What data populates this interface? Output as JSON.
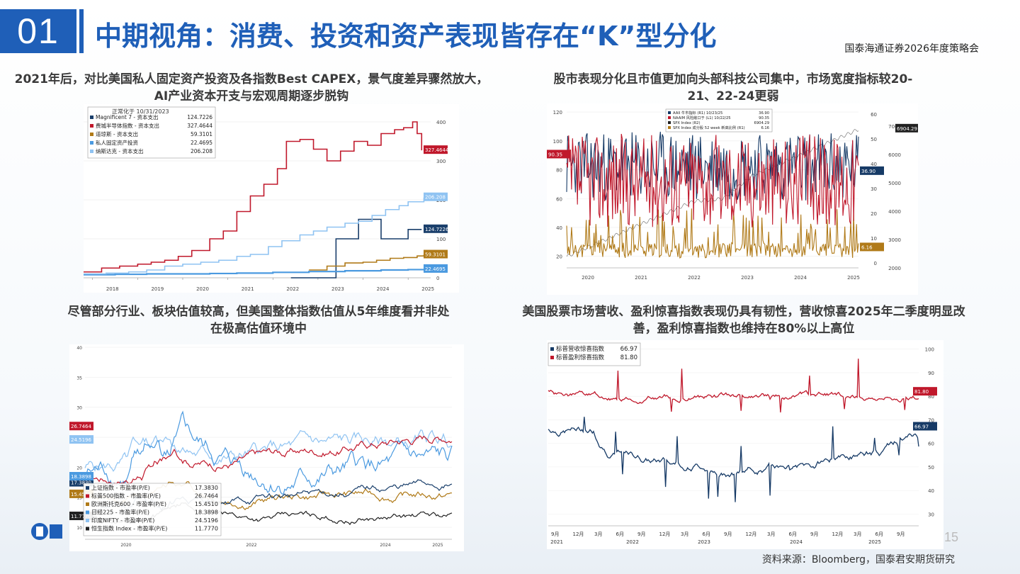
{
  "header": {
    "number": "01",
    "title": "中期视角：消费、投资和资产表现皆存在“K”型分化",
    "org": "国泰海通证券2026年度策略会"
  },
  "subtitles": {
    "tl": "2021年后，对比美国私人固定资产投资及各指数Best CAPEX，景气度差异骤然放大，AI产业资本开支与宏观周期逐步脱钩",
    "tr": "股市表现分化且市值更加向头部科技公司集中，市场宽度指标较20-21、22-24更弱",
    "bl": "尽管部分行业、板块估值较高，但美国整体指数估值从5年维度看并非处在极高估值环境中",
    "br": "美国股票市场营收、盈利惊喜指数表现仍具有韧性，营收惊喜2025年二季度明显改善，盈利惊喜指数也维持在80%以上高位"
  },
  "footer": {
    "source": "资料来源：Bloomberg，国泰君安期货研究",
    "page": "15"
  },
  "colors": {
    "brand": "#1f5fb8"
  },
  "chart_data": [
    {
      "id": "tl",
      "type": "line",
      "legend_title": "正常化于 10/31/2023",
      "x_ticks": [
        "2018",
        "2019",
        "2020",
        "2021",
        "2022",
        "2023",
        "2024",
        "2025"
      ],
      "y_ticks": [
        0,
        100,
        200,
        300,
        400
      ],
      "ylim": [
        0,
        420
      ],
      "series": [
        {
          "name": "Magnificent 7 - 资本支出",
          "last": "124.7226",
          "color": "#1a3f6b",
          "x": [
            2022.4,
            2022.9,
            2023.0,
            2023.3,
            2023.4,
            2023.8,
            2023.9,
            2024.2,
            2024.4,
            2024.9,
            2025.0,
            2025.3
          ],
          "y": [
            0,
            0,
            0,
            0,
            100,
            100,
            150,
            150,
            100,
            100,
            124,
            124
          ]
        },
        {
          "name": "费城半导体指数 - 资本支出",
          "last": "327.4644",
          "color": "#c0182b",
          "x": [
            2017.8,
            2018.2,
            2018.6,
            2019.0,
            2019.3,
            2019.6,
            2019.9,
            2020.2,
            2020.6,
            2020.9,
            2021.2,
            2021.5,
            2021.8,
            2022.1,
            2022.3,
            2022.6,
            2022.9,
            2023.2,
            2023.5,
            2023.8,
            2024.1,
            2024.4,
            2024.7,
            2024.9,
            2025.1,
            2025.2,
            2025.3
          ],
          "y": [
            15,
            25,
            30,
            35,
            40,
            45,
            55,
            70,
            100,
            120,
            170,
            210,
            240,
            280,
            350,
            355,
            330,
            300,
            325,
            350,
            340,
            370,
            380,
            385,
            400,
            370,
            327
          ]
        },
        {
          "name": "道琼斯 - 资本支出",
          "last": "59.3101",
          "color": "#b07a18",
          "x": [
            2022.8,
            2023.2,
            2023.6,
            2024.0,
            2024.3,
            2024.6,
            2024.9,
            2025.2,
            2025.35
          ],
          "y": [
            20,
            30,
            38,
            40,
            45,
            50,
            52,
            56,
            59
          ]
        },
        {
          "name": "私人固定资产投资",
          "last": "22.4695",
          "color": "#4b9ae0",
          "x": [
            2017.8,
            2018.5,
            2019.2,
            2020.0,
            2020.6,
            2021.2,
            2022.0,
            2022.8,
            2023.6,
            2024.4,
            2025.0,
            2025.35
          ],
          "y": [
            8,
            9,
            10,
            10,
            11,
            12,
            14,
            16,
            18,
            20,
            21,
            22
          ]
        },
        {
          "name": "纳斯达克 - 资本支出",
          "last": "206.208",
          "color": "#8fc3f2",
          "x": [
            2017.8,
            2018.3,
            2018.8,
            2019.2,
            2019.6,
            2020.0,
            2020.4,
            2020.8,
            2021.2,
            2021.5,
            2021.9,
            2022.2,
            2022.6,
            2022.9,
            2023.2,
            2023.6,
            2023.9,
            2024.2,
            2024.5,
            2024.8,
            2025.0,
            2025.35
          ],
          "y": [
            10,
            12,
            15,
            20,
            30,
            35,
            40,
            45,
            55,
            60,
            80,
            95,
            110,
            120,
            130,
            140,
            145,
            160,
            175,
            185,
            195,
            206
          ]
        }
      ]
    },
    {
      "id": "tr",
      "type": "line",
      "x_ticks": [
        "2020",
        "2021",
        "2022",
        "2023",
        "2024",
        "2025"
      ],
      "y_left": [
        20,
        40,
        60,
        80,
        100,
        120
      ],
      "y_right_a": [
        0,
        10,
        20,
        30,
        40,
        50,
        60
      ],
      "y_right_b": [
        2000,
        3000,
        4000,
        5000,
        6000,
        7000
      ],
      "series": [
        {
          "name": "AAII 牛市指标 (R1)",
          "date": "10/23/25",
          "last": "36.90",
          "color": "#163a66"
        },
        {
          "name": "NAAIM 风险敞口于 (L1)",
          "date": "10/22/25",
          "last": "90.35",
          "color": "#c0182b"
        },
        {
          "name": "SPX Index (R2)",
          "last": "6904.29",
          "color": "#222222"
        },
        {
          "name": "SPX Index 成分股 52 week 新高比例 (R1)",
          "last": "6.16",
          "color": "#b07a18"
        }
      ]
    },
    {
      "id": "bl",
      "type": "line",
      "x_ticks": [
        "2020",
        "2022",
        "2024",
        "2025"
      ],
      "y_ticks": [
        40,
        35,
        30,
        25,
        20,
        15,
        10
      ],
      "series": [
        {
          "name": "上证指数 - 市盈率(P/E)",
          "last": "17.3830",
          "color": "#1a3f6b"
        },
        {
          "name": "标普500指数 - 市盈率(P/E)",
          "last": "26.7464",
          "color": "#c0182b"
        },
        {
          "name": "欧洲斯托克600 - 市盈率(P/E)",
          "last": "15.4510",
          "color": "#b07a18"
        },
        {
          "name": "日经225 - 市盈率(P/E)",
          "last": "18.3898",
          "color": "#4b9ae0"
        },
        {
          "name": "印度NIFTY - 市盈率(P/E)",
          "last": "24.5196",
          "color": "#8fc3f2"
        },
        {
          "name": "恒生指数 Index - 市盈率(P/E)",
          "last": "11.7770",
          "color": "#222222"
        }
      ]
    },
    {
      "id": "br",
      "type": "line",
      "x_ticks": [
        "9月",
        "12月",
        "3月",
        "6月",
        "9月",
        "12月",
        "3月",
        "6月",
        "9月",
        "12月",
        "3月",
        "6月",
        "9月",
        "12月",
        "3月",
        "6月",
        "9月"
      ],
      "year_ticks": [
        "2021",
        "2022",
        "2023",
        "2024",
        "2025"
      ],
      "y_ticks": [
        30,
        40,
        50,
        60,
        70,
        80,
        90,
        100
      ],
      "ylim": [
        25,
        102
      ],
      "series": [
        {
          "name": "标普营收惊喜指数",
          "last": "66.97",
          "color": "#163a66"
        },
        {
          "name": "标普盈利惊喜指数",
          "last": "81.80",
          "color": "#c0182b"
        }
      ]
    }
  ]
}
